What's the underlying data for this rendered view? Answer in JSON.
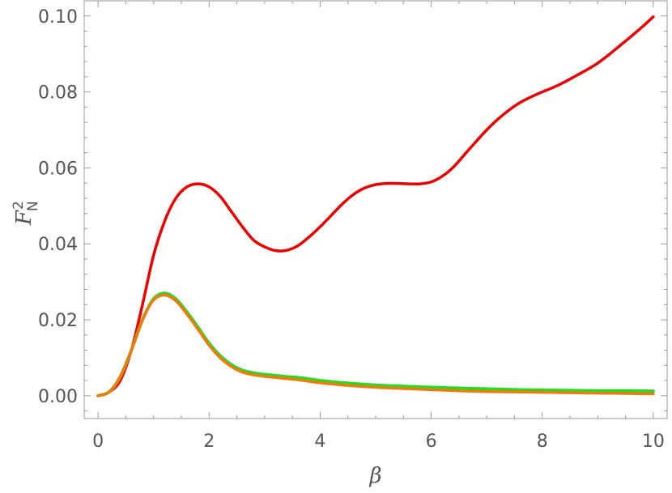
{
  "chart_data": {
    "type": "line",
    "title": "",
    "xlabel": "β",
    "ylabel": {
      "base": "F",
      "superscript": "2",
      "subscript": "N"
    },
    "xlim": [
      -0.25,
      10.25
    ],
    "ylim": [
      -0.006,
      0.104
    ],
    "x_ticks": [
      0,
      2,
      4,
      6,
      8,
      10
    ],
    "x_tick_labels": [
      "0",
      "2",
      "4",
      "6",
      "8",
      "10"
    ],
    "y_ticks": [
      0.0,
      0.02,
      0.04,
      0.06,
      0.08,
      0.1
    ],
    "y_tick_labels": [
      "0.00",
      "0.02",
      "0.04",
      "0.06",
      "0.08",
      "0.10"
    ],
    "grid": false,
    "legend": "none",
    "series": [
      {
        "color": "#ee0000",
        "x": [
          0,
          0.2,
          0.4,
          0.6,
          0.8,
          1.0,
          1.2,
          1.4,
          1.6,
          1.8,
          2.0,
          2.2,
          2.4,
          2.6,
          2.8,
          3.0,
          3.2,
          3.4,
          3.6,
          3.8,
          4.0,
          4.2,
          4.4,
          4.6,
          4.8,
          5.0,
          5.2,
          5.4,
          5.6,
          5.8,
          6.0,
          6.2,
          6.4,
          6.6,
          6.8,
          7.0,
          7.2,
          7.4,
          7.6,
          7.8,
          8.0,
          8.2,
          8.4,
          8.6,
          8.8,
          9.0,
          9.2,
          9.4,
          9.6,
          9.8,
          10.0
        ],
        "y": [
          0.0,
          0.001,
          0.004,
          0.012,
          0.024,
          0.037,
          0.046,
          0.052,
          0.055,
          0.0558,
          0.055,
          0.0525,
          0.0485,
          0.0445,
          0.041,
          0.0392,
          0.0382,
          0.0383,
          0.0395,
          0.0418,
          0.0445,
          0.0475,
          0.0505,
          0.053,
          0.0547,
          0.0556,
          0.0559,
          0.0559,
          0.0558,
          0.0558,
          0.0563,
          0.0578,
          0.0602,
          0.0635,
          0.0668,
          0.07,
          0.0728,
          0.0752,
          0.0772,
          0.0787,
          0.08,
          0.0812,
          0.0826,
          0.0842,
          0.0858,
          0.0876,
          0.0898,
          0.0922,
          0.0946,
          0.0971,
          0.0998
        ]
      },
      {
        "color": "#22dd22",
        "x": [
          0,
          0.2,
          0.4,
          0.6,
          0.8,
          1.0,
          1.2,
          1.4,
          1.6,
          1.8,
          2.0,
          2.2,
          2.4,
          2.6,
          2.8,
          3.0,
          3.2,
          3.4,
          3.6,
          3.8,
          4.0,
          4.5,
          5.0,
          5.5,
          6.0,
          6.5,
          7.0,
          7.5,
          8.0,
          8.5,
          9.0,
          9.5,
          10.0
        ],
        "y": [
          0.0,
          0.001,
          0.005,
          0.012,
          0.02,
          0.0255,
          0.027,
          0.0255,
          0.022,
          0.018,
          0.0138,
          0.0105,
          0.0082,
          0.0067,
          0.006,
          0.0056,
          0.0053,
          0.005,
          0.0048,
          0.0044,
          0.004,
          0.0033,
          0.0028,
          0.0025,
          0.0022,
          0.002,
          0.0018,
          0.0016,
          0.0015,
          0.0014,
          0.0013,
          0.0013,
          0.0012
        ]
      },
      {
        "color": "#f07a10",
        "x": [
          0,
          0.2,
          0.4,
          0.6,
          0.8,
          1.0,
          1.2,
          1.4,
          1.6,
          1.8,
          2.0,
          2.2,
          2.4,
          2.6,
          2.8,
          3.0,
          3.2,
          3.4,
          3.6,
          3.8,
          4.0,
          4.5,
          5.0,
          5.5,
          6.0,
          6.5,
          7.0,
          7.5,
          8.0,
          8.5,
          9.0,
          9.5,
          10.0
        ],
        "y": [
          0.0,
          0.001,
          0.005,
          0.012,
          0.02,
          0.0252,
          0.0265,
          0.025,
          0.0215,
          0.0175,
          0.0133,
          0.01,
          0.0077,
          0.0062,
          0.0055,
          0.0051,
          0.0048,
          0.0045,
          0.0042,
          0.0038,
          0.0034,
          0.0027,
          0.0022,
          0.0019,
          0.0016,
          0.0013,
          0.0011,
          0.001,
          0.0009,
          0.0008,
          0.0007,
          0.0006,
          0.0005
        ]
      }
    ]
  }
}
